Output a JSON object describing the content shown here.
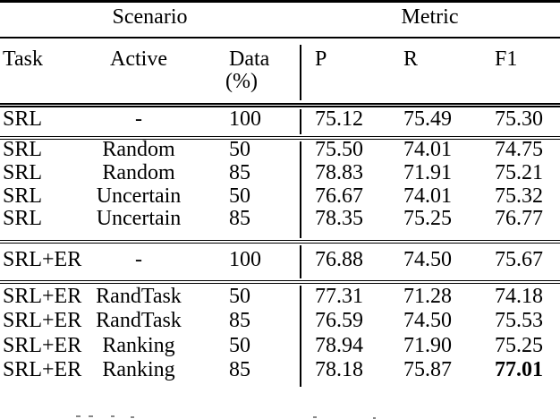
{
  "table": {
    "group_header": {
      "scenario": "Scenario",
      "metric": "Metric"
    },
    "columns": {
      "task": "Task",
      "active": "Active",
      "data_line1": "Data",
      "data_line2": "(%)",
      "p": "P",
      "r": "R",
      "f1": "F1"
    },
    "rows": [
      {
        "task": "SRL",
        "active": "-",
        "data": "100",
        "p": "75.12",
        "r": "75.49",
        "f1": "75.30"
      },
      {
        "task": "SRL",
        "active": "Random",
        "data": "50",
        "p": "75.50",
        "r": "74.01",
        "f1": "74.75"
      },
      {
        "task": "SRL",
        "active": "Random",
        "data": "85",
        "p": "78.83",
        "r": "71.91",
        "f1": "75.21"
      },
      {
        "task": "SRL",
        "active": "Uncertain",
        "data": "50",
        "p": "76.67",
        "r": "74.01",
        "f1": "75.32"
      },
      {
        "task": "SRL",
        "active": "Uncertain",
        "data": "85",
        "p": "78.35",
        "r": "75.25",
        "f1": "76.77"
      },
      {
        "task": "SRL+ER",
        "active": "-",
        "data": "100",
        "p": "76.88",
        "r": "74.50",
        "f1": "75.67"
      },
      {
        "task": "SRL+ER",
        "active": "RandTask",
        "data": "50",
        "p": "77.31",
        "r": "71.28",
        "f1": "74.18"
      },
      {
        "task": "SRL+ER",
        "active": "RandTask",
        "data": "85",
        "p": "76.59",
        "r": "74.50",
        "f1": "75.53"
      },
      {
        "task": "SRL+ER",
        "active": "Ranking",
        "data": "50",
        "p": "78.94",
        "r": "71.90",
        "f1": "75.25"
      },
      {
        "task": "SRL+ER",
        "active": "Ranking",
        "data": "85",
        "p": "78.18",
        "r": "75.87",
        "f1": "77.01"
      }
    ],
    "colors": {
      "text": "#000000",
      "background": "#ffffff",
      "rule": "#000000"
    }
  }
}
